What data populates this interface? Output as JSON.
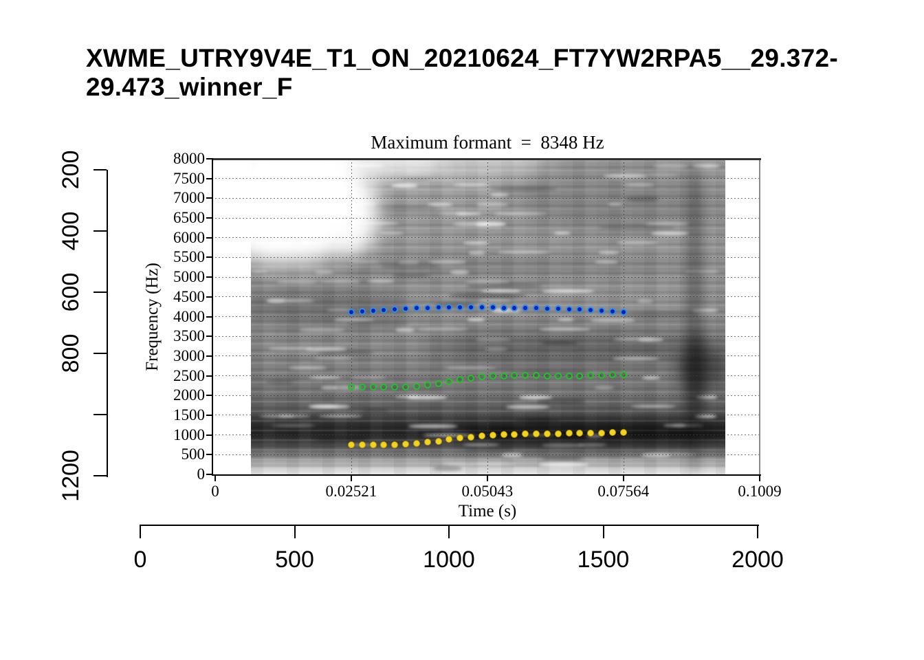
{
  "window_title": "XWME_UTRY9V4E_T1_ON_20210624_FT7YW2RPA5__29.372-29.473_winner_F",
  "plot": {
    "title": "Maximum formant  =  8348 Hz",
    "xlabel": "Time (s)",
    "ylabel": "Frequency (Hz)"
  },
  "chart_data": {
    "type": "scatter",
    "title": "Maximum formant = 8348 Hz",
    "xlabel": "Time (s)",
    "ylabel": "Frequency (Hz)",
    "xlim": [
      0,
      0.1009
    ],
    "ylim": [
      0,
      8000
    ],
    "background": "grayscale spectrogram",
    "grid": {
      "style": "dotted",
      "horizontal_every_hz": 500,
      "vertical_at": [
        0.02521,
        0.05043,
        0.07564,
        0.1009
      ]
    },
    "x_ticks": {
      "values": [
        0,
        0.02521,
        0.05043,
        0.07564,
        0.1009
      ],
      "labels": [
        "0",
        "0.02521",
        "0.05043",
        "0.07564",
        "0.1009"
      ]
    },
    "y_ticks": {
      "min": 0,
      "max": 8000,
      "step": 500
    },
    "times": [
      0.02521,
      0.02723,
      0.02924,
      0.03126,
      0.03328,
      0.0353,
      0.03731,
      0.03933,
      0.04135,
      0.04336,
      0.04538,
      0.0474,
      0.04942,
      0.05143,
      0.05345,
      0.05547,
      0.05748,
      0.0595,
      0.06152,
      0.06354,
      0.06555,
      0.06757,
      0.06959,
      0.0716,
      0.07362,
      0.07564
    ],
    "series": [
      {
        "name": "formant-track-F1",
        "marker": "filled-circle",
        "color": "#f2d41c",
        "values": [
          755,
          752,
          750,
          752,
          758,
          770,
          788,
          812,
          845,
          882,
          918,
          948,
          972,
          992,
          1008,
          1018,
          1025,
          1030,
          1032,
          1035,
          1038,
          1040,
          1045,
          1050,
          1058,
          1065
        ]
      },
      {
        "name": "formant-track-F2",
        "marker": "open-circle",
        "color": "#1fc325",
        "values": [
          2210,
          2208,
          2205,
          2205,
          2210,
          2218,
          2232,
          2262,
          2300,
          2350,
          2400,
          2442,
          2470,
          2490,
          2500,
          2505,
          2505,
          2502,
          2500,
          2498,
          2498,
          2500,
          2505,
          2512,
          2522,
          2532
        ]
      },
      {
        "name": "formant-track-F3",
        "marker": "ringed-filled-circle",
        "color": "#0d1db8",
        "ring_color": "#2d8fe6",
        "values": [
          4110,
          4130,
          4150,
          4168,
          4185,
          4198,
          4210,
          4220,
          4228,
          4234,
          4236,
          4236,
          4232,
          4230,
          4226,
          4222,
          4216,
          4210,
          4205,
          4198,
          4190,
          4180,
          4166,
          4150,
          4130,
          4112
        ]
      }
    ],
    "outer_axes": {
      "left": {
        "values": [
          200,
          400,
          600,
          800,
          1000,
          1200
        ],
        "labels": [
          "200",
          "400",
          "600",
          "800",
          "",
          "1200"
        ]
      },
      "bottom": {
        "values": [
          0,
          500,
          1000,
          1500,
          2000
        ],
        "labels": [
          "0",
          "500",
          "1000",
          "1500",
          "2000"
        ]
      }
    }
  }
}
